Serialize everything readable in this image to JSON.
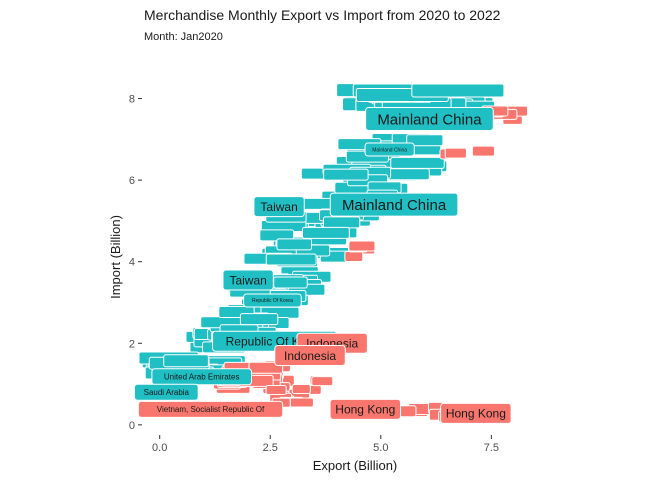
{
  "title": "Merchandise Monthly Export vs Import from 2020 to 2022",
  "subtitle": "Month: Jan2020",
  "colors": {
    "import_heavy": "#1fbfc3",
    "export_heavy": "#f8766d",
    "tick": "#4d4d4d"
  },
  "chart_data": {
    "type": "scatter",
    "title": "Merchandise Monthly Export vs Import from 2020 to 2022",
    "subtitle": "Month: Jan2020",
    "xlabel": "Export (Billion)",
    "ylabel": "Import (Billion)",
    "xlim": [
      -0.4,
      8.6
    ],
    "ylim": [
      -0.2,
      8.7
    ],
    "x_ticks": [
      0.0,
      2.5,
      5.0,
      7.5
    ],
    "x_tick_labels": [
      "0.0",
      "2.5",
      "5.0",
      "7.5"
    ],
    "y_ticks": [
      0,
      2,
      4,
      6,
      8
    ],
    "y_tick_labels": [
      "0",
      "2",
      "4",
      "6",
      "8"
    ],
    "grid": false,
    "legend": "none",
    "labels": [
      {
        "text": "Mainland China",
        "x": 6.1,
        "y": 7.5,
        "size": "large",
        "color": "teal"
      },
      {
        "text": "Mainland China",
        "x": 5.3,
        "y": 5.4,
        "size": "large",
        "color": "teal"
      },
      {
        "text": "Taiwan",
        "x": 2.7,
        "y": 5.35,
        "size": "medium",
        "color": "teal"
      },
      {
        "text": "Taiwan",
        "x": 2.0,
        "y": 3.55,
        "size": "medium",
        "color": "teal"
      },
      {
        "text": "Republic Of Korea",
        "x": 2.6,
        "y": 2.05,
        "size": "medium",
        "color": "teal"
      },
      {
        "text": "Indonesia",
        "x": 3.9,
        "y": 2.0,
        "size": "medium",
        "color": "red"
      },
      {
        "text": "Indonesia",
        "x": 3.4,
        "y": 1.7,
        "size": "medium",
        "color": "red"
      },
      {
        "text": "United Arab Emirates",
        "x": 0.95,
        "y": 1.18,
        "size": "small",
        "color": "teal"
      },
      {
        "text": "Saudi Arabia",
        "x": 0.15,
        "y": 0.8,
        "size": "small",
        "color": "teal"
      },
      {
        "text": "Vietnam, Socialist Republic Of",
        "x": 1.15,
        "y": 0.38,
        "size": "small",
        "color": "red"
      },
      {
        "text": "Hong Kong",
        "x": 4.65,
        "y": 0.38,
        "size": "medium",
        "color": "red"
      },
      {
        "text": "Hong Kong",
        "x": 7.15,
        "y": 0.28,
        "size": "medium",
        "color": "red"
      },
      {
        "text": "Mainland China",
        "x": 5.2,
        "y": 6.75,
        "size": "tiny",
        "color": "teal"
      },
      {
        "text": "Republic Of Korea",
        "x": 2.55,
        "y": 3.05,
        "size": "tiny",
        "color": "teal"
      }
    ]
  }
}
